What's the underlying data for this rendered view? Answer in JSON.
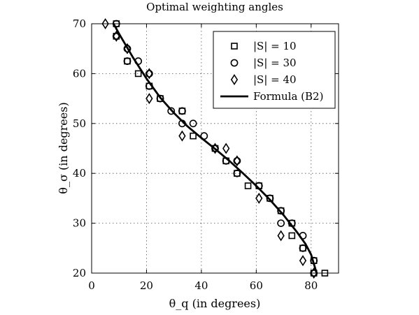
{
  "chart_data": {
    "type": "scatter",
    "title": "Optimal weighting angles",
    "xlabel": "θ_q (in degrees)",
    "ylabel": "θ_σ (in degrees)",
    "xlim": [
      0,
      90
    ],
    "ylim": [
      20,
      70
    ],
    "xticks": [
      "0",
      "20",
      "40",
      "60",
      "80"
    ],
    "yticks": [
      "20",
      "30",
      "40",
      "50",
      "60",
      "70"
    ],
    "grid": true,
    "legend_position": "top-right",
    "series": [
      {
        "name": "|S| = 10",
        "marker": "square",
        "points": [
          [
            9,
            70
          ],
          [
            9,
            67.5
          ],
          [
            13,
            62.5
          ],
          [
            17,
            60
          ],
          [
            21,
            57.5
          ],
          [
            25,
            55
          ],
          [
            33,
            52.5
          ],
          [
            37,
            47.5
          ],
          [
            45,
            45
          ],
          [
            49,
            42.5
          ],
          [
            53,
            40
          ],
          [
            57,
            37.5
          ],
          [
            61,
            37.5
          ],
          [
            65,
            35
          ],
          [
            69,
            32.5
          ],
          [
            73,
            30
          ],
          [
            73,
            27.5
          ],
          [
            77,
            25
          ],
          [
            81,
            22.5
          ],
          [
            81,
            20
          ],
          [
            85,
            20
          ]
        ]
      },
      {
        "name": "|S| = 30",
        "marker": "circle",
        "points": [
          [
            9,
            70
          ],
          [
            9,
            67.5
          ],
          [
            13,
            65
          ],
          [
            13,
            62.5
          ],
          [
            17,
            62.5
          ],
          [
            21,
            60
          ],
          [
            21,
            57.5
          ],
          [
            25,
            55
          ],
          [
            29,
            52.5
          ],
          [
            33,
            52.5
          ],
          [
            33,
            50
          ],
          [
            37,
            50
          ],
          [
            41,
            47.5
          ],
          [
            45,
            45
          ],
          [
            49,
            42.5
          ],
          [
            53,
            42.5
          ],
          [
            53,
            40
          ],
          [
            61,
            37.5
          ],
          [
            65,
            35
          ],
          [
            69,
            32.5
          ],
          [
            69,
            30
          ],
          [
            73,
            30
          ],
          [
            77,
            27.5
          ],
          [
            77,
            25
          ],
          [
            81,
            22.5
          ],
          [
            81,
            20
          ]
        ]
      },
      {
        "name": "|S| = 40",
        "marker": "diamond",
        "points": [
          [
            5,
            70
          ],
          [
            9,
            67.5
          ],
          [
            13,
            65
          ],
          [
            21,
            60
          ],
          [
            21,
            55
          ],
          [
            33,
            47.5
          ],
          [
            45,
            45
          ],
          [
            49,
            45
          ],
          [
            53,
            42.5
          ],
          [
            61,
            35
          ],
          [
            69,
            27.5
          ],
          [
            77,
            22.5
          ],
          [
            81,
            20
          ]
        ]
      },
      {
        "name": "Formula (B2)",
        "marker": "line",
        "points": [
          [
            8,
            70
          ],
          [
            10,
            68
          ],
          [
            15,
            63.3
          ],
          [
            20,
            59
          ],
          [
            25,
            55.2
          ],
          [
            30,
            52.1
          ],
          [
            35,
            49.4
          ],
          [
            40,
            47.1
          ],
          [
            45,
            44.9
          ],
          [
            50,
            42.6
          ],
          [
            55,
            40.1
          ],
          [
            60,
            37.5
          ],
          [
            65,
            34.7
          ],
          [
            70,
            31.6
          ],
          [
            75,
            28.1
          ],
          [
            78,
            25.8
          ],
          [
            80,
            23.7
          ],
          [
            82,
            20
          ]
        ]
      }
    ]
  }
}
